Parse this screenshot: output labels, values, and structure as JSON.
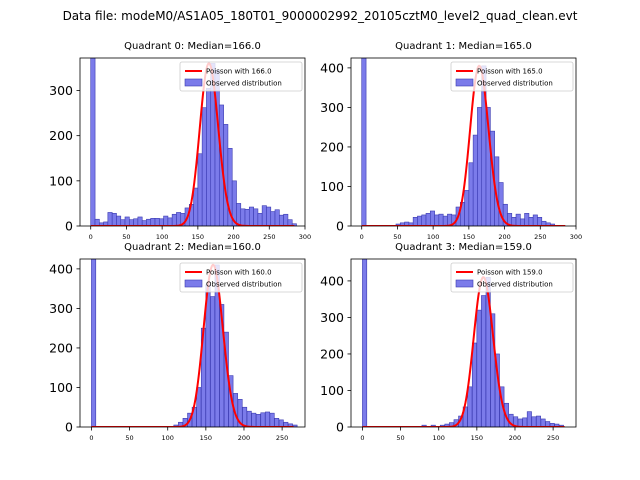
{
  "suptitle": "Data file: modeM0/AS1A05_180T01_9000002992_20105cztM0_level2_quad_clean.evt",
  "colors": {
    "hist_fill": "#7b7bea",
    "hist_edge": "#3a3ab0",
    "poisson": "#ff0000",
    "axis": "#000000"
  },
  "chart_data": [
    {
      "type": "bar",
      "title": "Quadrant 0: Median=166.0",
      "median": 166.0,
      "legend": [
        "Poisson with 166.0",
        "Observed distribution"
      ],
      "legend_position": "upper right",
      "xlim": [
        -15,
        300
      ],
      "ylim": [
        0,
        372
      ],
      "xticks": [
        0,
        50,
        100,
        150,
        200,
        250,
        300
      ],
      "yticks": [
        0,
        100,
        200,
        300
      ],
      "bin_width": 6.1,
      "bins": [
        [
          0,
          372
        ],
        [
          6,
          15
        ],
        [
          12,
          7
        ],
        [
          18,
          9
        ],
        [
          24,
          30
        ],
        [
          30,
          28
        ],
        [
          36,
          22
        ],
        [
          42,
          14
        ],
        [
          48,
          20
        ],
        [
          54,
          14
        ],
        [
          60,
          16
        ],
        [
          66,
          20
        ],
        [
          72,
          12
        ],
        [
          78,
          15
        ],
        [
          84,
          17
        ],
        [
          90,
          17
        ],
        [
          96,
          16
        ],
        [
          102,
          22
        ],
        [
          108,
          18
        ],
        [
          114,
          26
        ],
        [
          120,
          30
        ],
        [
          126,
          28
        ],
        [
          132,
          40
        ],
        [
          138,
          48
        ],
        [
          144,
          84
        ],
        [
          150,
          160
        ],
        [
          156,
          262
        ],
        [
          162,
          305
        ],
        [
          168,
          360
        ],
        [
          174,
          345
        ],
        [
          180,
          268
        ],
        [
          186,
          225
        ],
        [
          192,
          172
        ],
        [
          198,
          100
        ],
        [
          204,
          50
        ],
        [
          210,
          38
        ],
        [
          216,
          37
        ],
        [
          222,
          42
        ],
        [
          228,
          38
        ],
        [
          234,
          28
        ],
        [
          240,
          45
        ],
        [
          246,
          42
        ],
        [
          252,
          32
        ],
        [
          258,
          36
        ],
        [
          264,
          24
        ],
        [
          270,
          26
        ],
        [
          276,
          14
        ],
        [
          282,
          5
        ]
      ]
    },
    {
      "type": "bar",
      "title": "Quadrant 1: Median=165.0",
      "median": 165.0,
      "legend": [
        "Poisson with 165.0",
        "Observed distribution"
      ],
      "legend_position": "upper right",
      "xlim": [
        -15,
        300
      ],
      "ylim": [
        0,
        425
      ],
      "xticks": [
        0,
        50,
        100,
        150,
        200,
        250,
        300
      ],
      "yticks": [
        0,
        100,
        200,
        300,
        400
      ],
      "bin_width": 6.1,
      "bins": [
        [
          0,
          425
        ],
        [
          48,
          5
        ],
        [
          54,
          8
        ],
        [
          60,
          10
        ],
        [
          66,
          8
        ],
        [
          72,
          22
        ],
        [
          78,
          25
        ],
        [
          84,
          28
        ],
        [
          90,
          32
        ],
        [
          96,
          38
        ],
        [
          102,
          28
        ],
        [
          108,
          30
        ],
        [
          114,
          25
        ],
        [
          120,
          30
        ],
        [
          126,
          28
        ],
        [
          132,
          48
        ],
        [
          138,
          60
        ],
        [
          144,
          90
        ],
        [
          150,
          160
        ],
        [
          156,
          230
        ],
        [
          162,
          300
        ],
        [
          168,
          405
        ],
        [
          174,
          300
        ],
        [
          180,
          240
        ],
        [
          186,
          175
        ],
        [
          192,
          110
        ],
        [
          198,
          55
        ],
        [
          204,
          32
        ],
        [
          210,
          22
        ],
        [
          216,
          30
        ],
        [
          222,
          18
        ],
        [
          228,
          32
        ],
        [
          234,
          22
        ],
        [
          240,
          28
        ],
        [
          246,
          22
        ],
        [
          252,
          12
        ],
        [
          258,
          8
        ],
        [
          264,
          5
        ]
      ]
    },
    {
      "type": "bar",
      "title": "Quadrant 2: Median=160.0",
      "median": 160.0,
      "legend": [
        "Poisson with 160.0",
        "Observed distribution"
      ],
      "legend_position": "upper right",
      "xlim": [
        -15,
        280
      ],
      "ylim": [
        0,
        425
      ],
      "xticks": [
        0,
        50,
        100,
        150,
        200,
        250
      ],
      "yticks": [
        0,
        100,
        200,
        300,
        400
      ],
      "bin_width": 5.7,
      "bins": [
        [
          0,
          425
        ],
        [
          108,
          5
        ],
        [
          114,
          12
        ],
        [
          120,
          22
        ],
        [
          126,
          35
        ],
        [
          132,
          50
        ],
        [
          138,
          100
        ],
        [
          144,
          250
        ],
        [
          150,
          360
        ],
        [
          156,
          330
        ],
        [
          162,
          410
        ],
        [
          168,
          310
        ],
        [
          174,
          240
        ],
        [
          180,
          130
        ],
        [
          186,
          85
        ],
        [
          192,
          70
        ],
        [
          198,
          50
        ],
        [
          204,
          40
        ],
        [
          210,
          35
        ],
        [
          216,
          32
        ],
        [
          222,
          36
        ],
        [
          228,
          38
        ],
        [
          234,
          35
        ],
        [
          240,
          22
        ],
        [
          246,
          18
        ],
        [
          252,
          12
        ],
        [
          258,
          8
        ],
        [
          264,
          5
        ]
      ]
    },
    {
      "type": "bar",
      "title": "Quadrant 3: Median=159.0",
      "median": 159.0,
      "legend": [
        "Poisson with 159.0",
        "Observed distribution"
      ],
      "legend_position": "upper right",
      "xlim": [
        -15,
        280
      ],
      "ylim": [
        0,
        460
      ],
      "xticks": [
        0,
        50,
        100,
        150,
        200,
        250
      ],
      "yticks": [
        0,
        100,
        200,
        300,
        400
      ],
      "bin_width": 5.7,
      "bins": [
        [
          0,
          460
        ],
        [
          78,
          5
        ],
        [
          90,
          5
        ],
        [
          102,
          5
        ],
        [
          108,
          8
        ],
        [
          114,
          12
        ],
        [
          120,
          20
        ],
        [
          126,
          30
        ],
        [
          132,
          55
        ],
        [
          138,
          110
        ],
        [
          144,
          230
        ],
        [
          150,
          320
        ],
        [
          156,
          360
        ],
        [
          162,
          410
        ],
        [
          168,
          310
        ],
        [
          174,
          200
        ],
        [
          180,
          110
        ],
        [
          186,
          65
        ],
        [
          192,
          35
        ],
        [
          198,
          28
        ],
        [
          204,
          22
        ],
        [
          210,
          25
        ],
        [
          216,
          42
        ],
        [
          222,
          28
        ],
        [
          228,
          30
        ],
        [
          234,
          22
        ],
        [
          240,
          15
        ],
        [
          246,
          10
        ],
        [
          252,
          8
        ],
        [
          258,
          5
        ]
      ]
    }
  ]
}
